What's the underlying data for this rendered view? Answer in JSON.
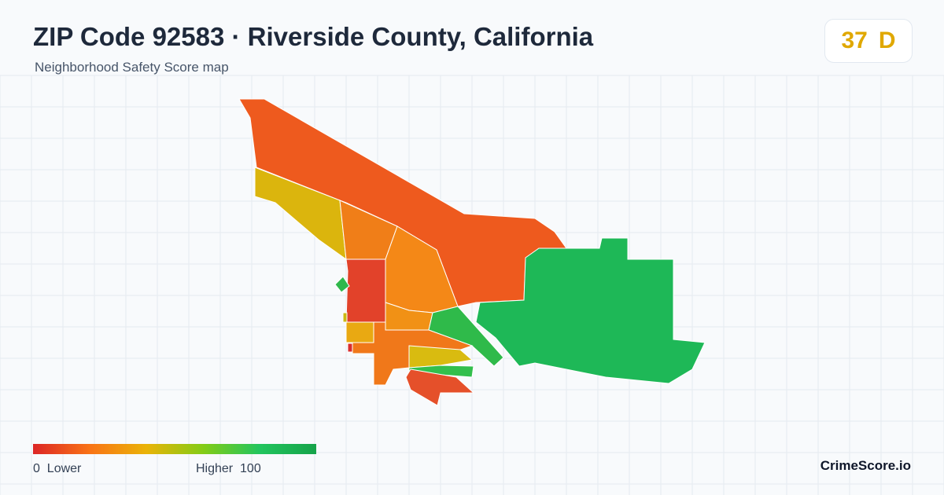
{
  "header": {
    "title": "ZIP Code 92583 · Riverside County, California",
    "subtitle": "Neighborhood Safety Score map"
  },
  "score": {
    "value": 37,
    "grade": "D"
  },
  "legend": {
    "min": 0,
    "min_label": "Lower",
    "max_label": "Higher",
    "max": 100
  },
  "brand": "CrimeScore.io"
}
